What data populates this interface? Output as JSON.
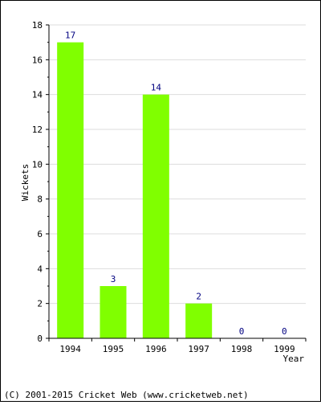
{
  "chart_data": {
    "type": "bar",
    "categories": [
      "1994",
      "1995",
      "1996",
      "1997",
      "1998",
      "1999"
    ],
    "values": [
      17,
      3,
      14,
      2,
      0,
      0
    ],
    "title": "",
    "xlabel": "Year",
    "ylabel": "Wickets",
    "ylim": [
      0,
      18
    ],
    "yticks": [
      "0",
      "2",
      "4",
      "6",
      "8",
      "10",
      "12",
      "14",
      "16",
      "18"
    ],
    "data_labels": [
      "17",
      "3",
      "14",
      "2",
      "0",
      "0"
    ],
    "grid": true,
    "bar_color": "#80ff00",
    "data_label_color": "#000080",
    "grid_color": "#dddddd"
  },
  "footer": {
    "copyright": "(C) 2001-2015 Cricket Web (www.cricketweb.net)"
  }
}
